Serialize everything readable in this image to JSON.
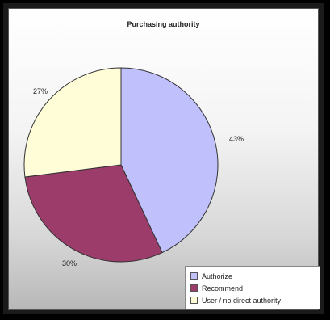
{
  "chart_data": {
    "type": "pie",
    "title": "Purchasing authority",
    "slices": [
      {
        "label": "Authorize",
        "value": 43,
        "display": "43%",
        "color": "#c0c0fc"
      },
      {
        "label": "Recommend",
        "value": 30,
        "display": "30%",
        "color": "#9c3c6a"
      },
      {
        "label": "User / no direct authority",
        "value": 27,
        "display": "27%",
        "color": "#fffcd8"
      }
    ],
    "legend_position": "bottom-right"
  }
}
